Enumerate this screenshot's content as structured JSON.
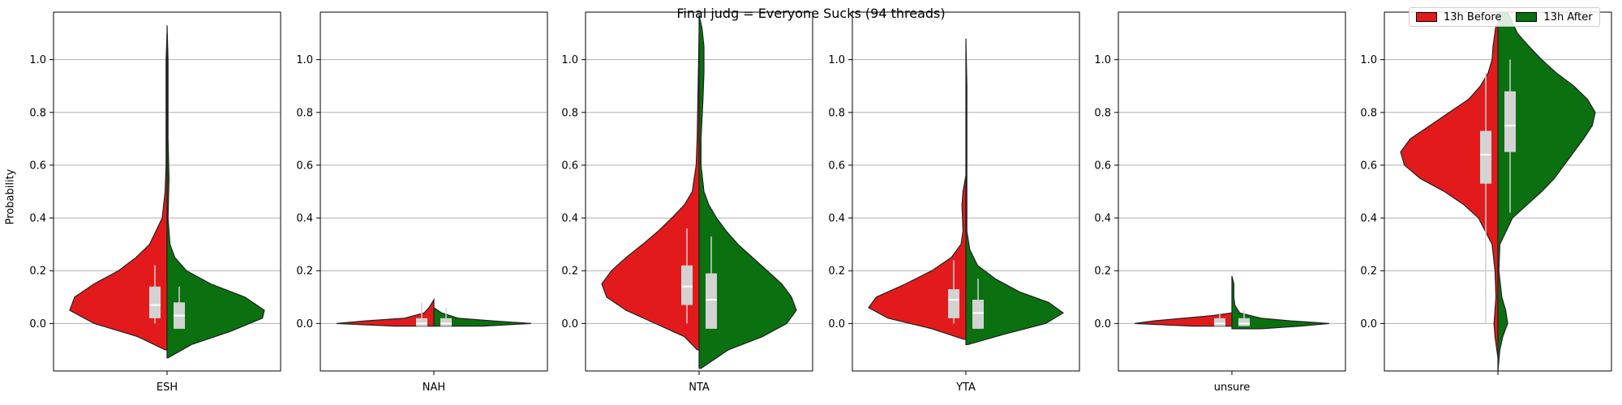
{
  "title": "Final judg = Everyone Sucks (94 threads)",
  "colors": {
    "before": "#e31a1c",
    "after": "#0a7010",
    "box": "#d3d3d3",
    "median": "#ffffff",
    "grid": "#b0b0b0"
  },
  "legend": {
    "placement": "top-right",
    "entries": [
      {
        "label": "13h Before",
        "color": "#e31a1c"
      },
      {
        "label": "13h After",
        "color": "#0a7010"
      }
    ]
  },
  "chart_data": {
    "type": "violin",
    "split": true,
    "title": "Final judg = Everyone Sucks (94 threads)",
    "ylabel": "Probability",
    "ylim": [
      -0.18,
      1.18
    ],
    "yticks": [
      0.0,
      0.2,
      0.4,
      0.6,
      0.8,
      1.0
    ],
    "ytick_labels": [
      "0.0",
      "0.2",
      "0.4",
      "0.6",
      "0.8",
      "1.0"
    ],
    "grid": "y",
    "panels": [
      {
        "category": "ESH",
        "before": {
          "quartiles": [
            0.02,
            0.07,
            0.14
          ],
          "whisker": [
            0.0,
            0.22
          ],
          "kde_extent": [
            -0.1,
            1.1
          ],
          "peak": 0.07,
          "density": [
            [
              -0.1,
              0.02
            ],
            [
              -0.05,
              0.3
            ],
            [
              0.0,
              0.75
            ],
            [
              0.05,
              1.0
            ],
            [
              0.1,
              0.95
            ],
            [
              0.15,
              0.75
            ],
            [
              0.2,
              0.5
            ],
            [
              0.25,
              0.32
            ],
            [
              0.3,
              0.18
            ],
            [
              0.4,
              0.05
            ],
            [
              0.5,
              0.02
            ],
            [
              0.6,
              0.01
            ],
            [
              0.8,
              0.01
            ],
            [
              1.0,
              0.01
            ],
            [
              1.1,
              0.0
            ]
          ]
        },
        "after": {
          "quartiles": [
            -0.02,
            0.03,
            0.08
          ],
          "whisker": [
            -0.02,
            0.14
          ],
          "kde_extent": [
            -0.13,
            1.13
          ],
          "peak": 0.03,
          "density": [
            [
              -0.13,
              0.01
            ],
            [
              -0.08,
              0.25
            ],
            [
              -0.03,
              0.65
            ],
            [
              0.02,
              0.98
            ],
            [
              0.05,
              1.0
            ],
            [
              0.1,
              0.8
            ],
            [
              0.15,
              0.45
            ],
            [
              0.2,
              0.2
            ],
            [
              0.25,
              0.08
            ],
            [
              0.3,
              0.03
            ],
            [
              0.4,
              0.01
            ],
            [
              0.55,
              0.02
            ],
            [
              0.7,
              0.01
            ],
            [
              0.9,
              0.01
            ],
            [
              1.0,
              0.01
            ],
            [
              1.13,
              0.0
            ]
          ]
        }
      },
      {
        "category": "NAH",
        "before": {
          "quartiles": [
            -0.01,
            0.0,
            0.02
          ],
          "whisker": [
            -0.01,
            0.08
          ],
          "kde_extent": [
            -0.01,
            0.09
          ],
          "peak": 0.0,
          "density": [
            [
              -0.01,
              0.4
            ],
            [
              0.0,
              1.0
            ],
            [
              0.01,
              0.7
            ],
            [
              0.02,
              0.3
            ],
            [
              0.04,
              0.1
            ],
            [
              0.06,
              0.05
            ],
            [
              0.09,
              0.0
            ]
          ]
        },
        "after": {
          "quartiles": [
            -0.01,
            0.0,
            0.02
          ],
          "whisker": [
            -0.01,
            0.06
          ],
          "kde_extent": [
            -0.01,
            0.06
          ],
          "peak": 0.0,
          "density": [
            [
              -0.01,
              0.5
            ],
            [
              0.0,
              1.0
            ],
            [
              0.01,
              0.6
            ],
            [
              0.02,
              0.25
            ],
            [
              0.04,
              0.08
            ],
            [
              0.06,
              0.0
            ]
          ]
        }
      },
      {
        "category": "NTA",
        "before": {
          "quartiles": [
            0.07,
            0.14,
            0.22
          ],
          "whisker": [
            0.0,
            0.36
          ],
          "kde_extent": [
            -0.1,
            1.1
          ],
          "peak": 0.14,
          "density": [
            [
              -0.1,
              0.02
            ],
            [
              -0.05,
              0.15
            ],
            [
              0.0,
              0.45
            ],
            [
              0.05,
              0.75
            ],
            [
              0.1,
              0.95
            ],
            [
              0.15,
              1.0
            ],
            [
              0.2,
              0.9
            ],
            [
              0.25,
              0.75
            ],
            [
              0.3,
              0.58
            ],
            [
              0.35,
              0.42
            ],
            [
              0.4,
              0.28
            ],
            [
              0.45,
              0.15
            ],
            [
              0.5,
              0.07
            ],
            [
              0.6,
              0.03
            ],
            [
              0.7,
              0.02
            ],
            [
              0.9,
              0.01
            ],
            [
              1.1,
              0.0
            ]
          ]
        },
        "after": {
          "quartiles": [
            -0.02,
            0.09,
            0.19
          ],
          "whisker": [
            -0.02,
            0.33
          ],
          "kde_extent": [
            -0.17,
            1.17
          ],
          "peak": 0.05,
          "density": [
            [
              -0.17,
              0.02
            ],
            [
              -0.1,
              0.3
            ],
            [
              -0.05,
              0.65
            ],
            [
              0.0,
              0.9
            ],
            [
              0.05,
              1.0
            ],
            [
              0.1,
              0.95
            ],
            [
              0.15,
              0.85
            ],
            [
              0.2,
              0.7
            ],
            [
              0.25,
              0.55
            ],
            [
              0.3,
              0.4
            ],
            [
              0.35,
              0.28
            ],
            [
              0.4,
              0.18
            ],
            [
              0.45,
              0.1
            ],
            [
              0.5,
              0.05
            ],
            [
              0.6,
              0.02
            ],
            [
              0.7,
              0.02
            ],
            [
              0.85,
              0.04
            ],
            [
              0.95,
              0.05
            ],
            [
              1.05,
              0.05
            ],
            [
              1.12,
              0.03
            ],
            [
              1.17,
              0.0
            ]
          ]
        }
      },
      {
        "category": "YTA",
        "before": {
          "quartiles": [
            0.02,
            0.09,
            0.13
          ],
          "whisker": [
            0.0,
            0.24
          ],
          "kde_extent": [
            -0.06,
            0.56
          ],
          "peak": 0.08,
          "density": [
            [
              -0.06,
              0.02
            ],
            [
              -0.02,
              0.35
            ],
            [
              0.02,
              0.8
            ],
            [
              0.06,
              1.0
            ],
            [
              0.1,
              0.92
            ],
            [
              0.15,
              0.62
            ],
            [
              0.2,
              0.35
            ],
            [
              0.25,
              0.15
            ],
            [
              0.3,
              0.05
            ],
            [
              0.35,
              0.03
            ],
            [
              0.45,
              0.04
            ],
            [
              0.5,
              0.03
            ],
            [
              0.56,
              0.0
            ]
          ]
        },
        "after": {
          "quartiles": [
            -0.02,
            0.04,
            0.09
          ],
          "whisker": [
            -0.02,
            0.17
          ],
          "kde_extent": [
            -0.08,
            1.08
          ],
          "peak": 0.03,
          "density": [
            [
              -0.08,
              0.02
            ],
            [
              -0.04,
              0.4
            ],
            [
              0.0,
              0.82
            ],
            [
              0.04,
              1.0
            ],
            [
              0.08,
              0.85
            ],
            [
              0.12,
              0.55
            ],
            [
              0.17,
              0.3
            ],
            [
              0.22,
              0.12
            ],
            [
              0.28,
              0.04
            ],
            [
              0.35,
              0.01
            ],
            [
              0.5,
              0.01
            ],
            [
              0.7,
              0.01
            ],
            [
              0.9,
              0.01
            ],
            [
              1.08,
              0.0
            ]
          ]
        }
      },
      {
        "category": "unsure",
        "before": {
          "quartiles": [
            -0.01,
            0.0,
            0.02
          ],
          "whisker": [
            -0.01,
            0.04
          ],
          "kde_extent": [
            -0.01,
            0.04
          ],
          "peak": 0.0,
          "density": [
            [
              -0.01,
              0.4
            ],
            [
              0.0,
              1.0
            ],
            [
              0.01,
              0.8
            ],
            [
              0.02,
              0.5
            ],
            [
              0.03,
              0.2
            ],
            [
              0.04,
              0.0
            ]
          ]
        },
        "after": {
          "quartiles": [
            -0.01,
            0.0,
            0.02
          ],
          "whisker": [
            -0.01,
            0.05
          ],
          "kde_extent": [
            -0.02,
            0.18
          ],
          "peak": 0.0,
          "density": [
            [
              -0.02,
              0.3
            ],
            [
              -0.01,
              0.7
            ],
            [
              0.0,
              1.0
            ],
            [
              0.01,
              0.6
            ],
            [
              0.02,
              0.3
            ],
            [
              0.04,
              0.08
            ],
            [
              0.07,
              0.03
            ],
            [
              0.1,
              0.02
            ],
            [
              0.15,
              0.02
            ],
            [
              0.18,
              0.0
            ]
          ]
        }
      },
      {
        "category": "",
        "before": {
          "quartiles": [
            0.53,
            0.64,
            0.73
          ],
          "whisker": [
            0.0,
            0.95
          ],
          "kde_extent": [
            -0.13,
            1.13
          ],
          "peak": 0.64,
          "density": [
            [
              -0.13,
              0.0
            ],
            [
              -0.05,
              0.03
            ],
            [
              0.0,
              0.04
            ],
            [
              0.05,
              0.03
            ],
            [
              0.1,
              0.02
            ],
            [
              0.2,
              0.03
            ],
            [
              0.3,
              0.06
            ],
            [
              0.4,
              0.2
            ],
            [
              0.45,
              0.35
            ],
            [
              0.5,
              0.55
            ],
            [
              0.55,
              0.8
            ],
            [
              0.6,
              0.96
            ],
            [
              0.65,
              1.0
            ],
            [
              0.7,
              0.9
            ],
            [
              0.75,
              0.7
            ],
            [
              0.8,
              0.5
            ],
            [
              0.85,
              0.3
            ],
            [
              0.9,
              0.18
            ],
            [
              0.95,
              0.1
            ],
            [
              1.0,
              0.06
            ],
            [
              1.05,
              0.05
            ],
            [
              1.13,
              0.02
            ]
          ]
        },
        "after": {
          "quartiles": [
            0.65,
            0.75,
            0.88
          ],
          "whisker": [
            0.42,
            1.0
          ],
          "kde_extent": [
            -0.18,
            1.18
          ],
          "peak": 0.8,
          "density": [
            [
              -0.18,
              0.0
            ],
            [
              -0.1,
              0.02
            ],
            [
              -0.05,
              0.05
            ],
            [
              0.0,
              0.1
            ],
            [
              0.05,
              0.08
            ],
            [
              0.1,
              0.04
            ],
            [
              0.2,
              0.01
            ],
            [
              0.3,
              0.02
            ],
            [
              0.4,
              0.15
            ],
            [
              0.45,
              0.3
            ],
            [
              0.5,
              0.45
            ],
            [
              0.55,
              0.58
            ],
            [
              0.6,
              0.68
            ],
            [
              0.65,
              0.78
            ],
            [
              0.7,
              0.88
            ],
            [
              0.75,
              0.97
            ],
            [
              0.8,
              1.0
            ],
            [
              0.85,
              0.92
            ],
            [
              0.9,
              0.78
            ],
            [
              0.95,
              0.6
            ],
            [
              1.0,
              0.45
            ],
            [
              1.05,
              0.32
            ],
            [
              1.1,
              0.2
            ],
            [
              1.18,
              0.1
            ]
          ]
        }
      }
    ]
  }
}
